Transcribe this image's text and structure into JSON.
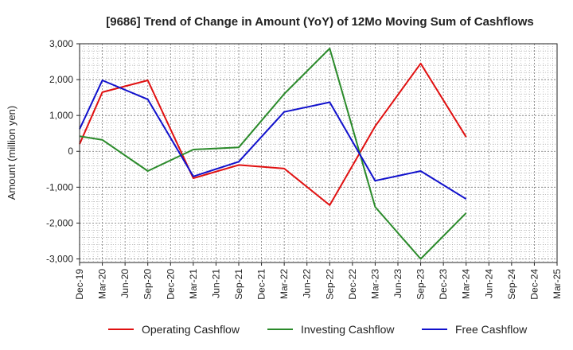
{
  "chart_data": {
    "type": "line",
    "title": "[9686]  Trend of Change in Amount (YoY) of 12Mo Moving Sum of Cashflows",
    "xlabel": "",
    "ylabel": "Amount (million yen)",
    "ylim": [
      -3100,
      3000
    ],
    "yticks": [
      3000,
      2000,
      1000,
      0,
      -1000,
      -2000,
      -3000
    ],
    "ytick_labels": [
      "3,000",
      "2,000",
      "1,000",
      "0",
      "-1,000",
      "-2,000",
      "-3,000"
    ],
    "categories": [
      "Dec-19",
      "Mar-20",
      "Jun-20",
      "Sep-20",
      "Dec-20",
      "Mar-21",
      "Jun-21",
      "Sep-21",
      "Dec-21",
      "Mar-22",
      "Jun-22",
      "Sep-22",
      "Dec-22",
      "Mar-23",
      "Jun-23",
      "Sep-23",
      "Dec-23",
      "Mar-24",
      "Jun-24",
      "Sep-24",
      "Dec-24",
      "Mar-25"
    ],
    "grid": true,
    "legend_position": "bottom",
    "series": [
      {
        "name": "Operating Cashflow",
        "color": "#e01010",
        "values": [
          200,
          1650,
          null,
          1980,
          null,
          -750,
          null,
          -380,
          null,
          -480,
          null,
          -1500,
          null,
          700,
          null,
          2450,
          null,
          400,
          null,
          null,
          null,
          null
        ]
      },
      {
        "name": "Investing Cashflow",
        "color": "#2a8a2a",
        "values": [
          420,
          320,
          null,
          -550,
          null,
          50,
          null,
          110,
          null,
          1600,
          null,
          2870,
          null,
          -1550,
          null,
          -3000,
          null,
          -1720,
          null,
          null,
          null,
          null
        ]
      },
      {
        "name": "Free Cashflow",
        "color": "#1010cc",
        "values": [
          620,
          1980,
          null,
          1450,
          null,
          -700,
          null,
          -290,
          null,
          1100,
          null,
          1370,
          null,
          -820,
          null,
          -550,
          null,
          -1330,
          null,
          null,
          null,
          null
        ]
      }
    ]
  }
}
